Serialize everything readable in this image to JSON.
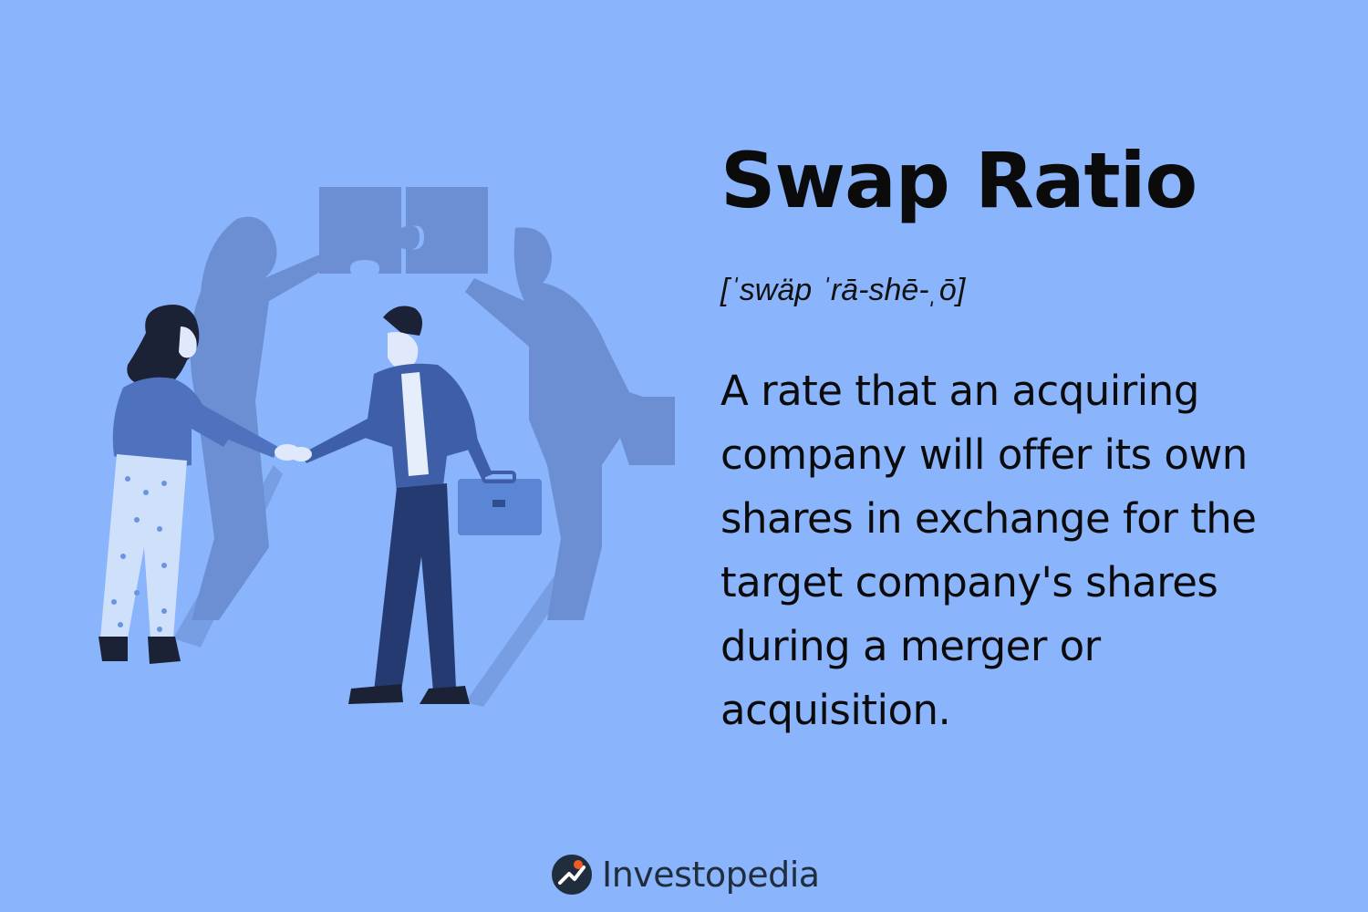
{
  "term": {
    "title": "Swap Ratio",
    "pronunciation": "[ˈswäp ˈrā-shē-ˌō]",
    "definition": "A rate that an acquiring company will offer its own shares in exchange for the target company's shares during a merger or acquisition."
  },
  "illustration": {
    "description_icon": "handshake-puzzle-illustration"
  },
  "brand": {
    "name": "Investopedia",
    "accent": "#f15a24",
    "dark": "#1f2d3d"
  },
  "colors": {
    "background": "#8ab4fb",
    "shadow": "#6a8fd0"
  }
}
